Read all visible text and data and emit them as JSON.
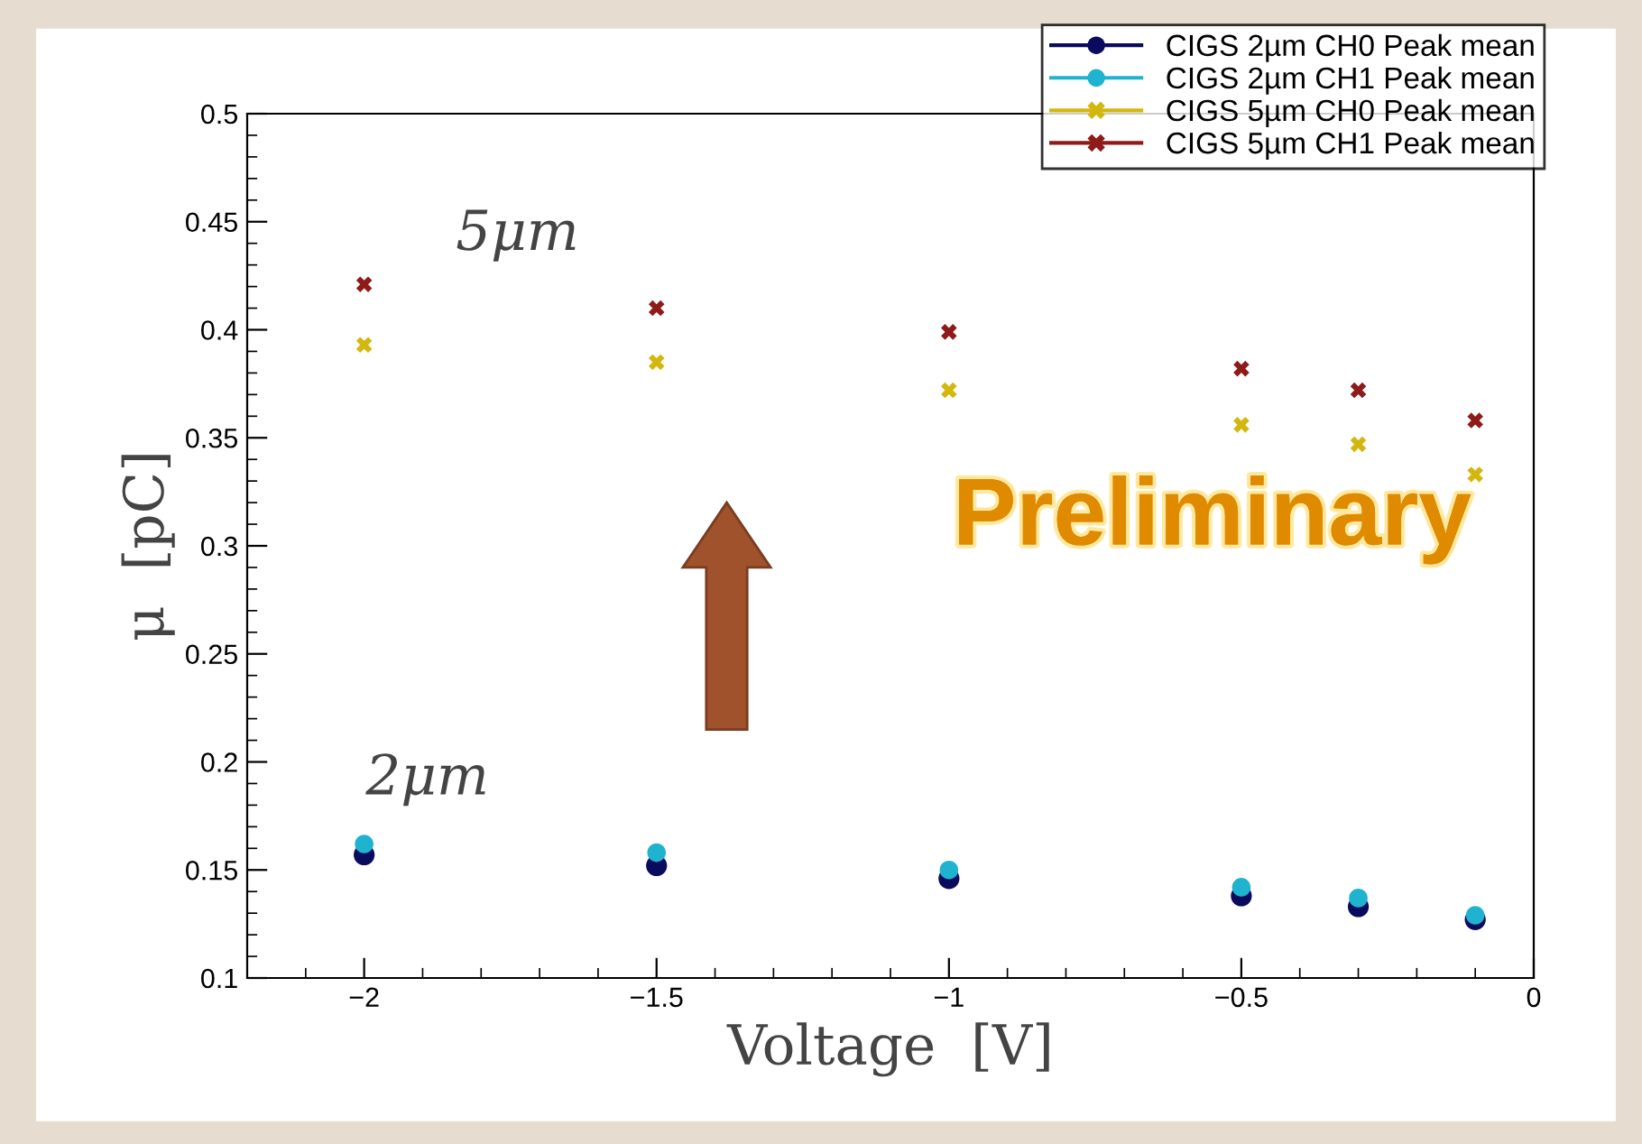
{
  "chart_data": {
    "type": "scatter",
    "xlabel": "Voltage  [V]",
    "ylabel": "μ  [pC]",
    "x": [
      -2,
      -1.5,
      -1,
      -0.5,
      -0.3,
      -0.1
    ],
    "series": [
      {
        "name": "CIGS 2µm CH0 Peak mean",
        "color": "#0b0b5e",
        "marker": "circle",
        "values": [
          0.157,
          0.152,
          0.146,
          0.138,
          0.133,
          0.127
        ]
      },
      {
        "name": "CIGS 2µm CH1 Peak mean",
        "color": "#1fb3cf",
        "marker": "circle",
        "values": [
          0.162,
          0.158,
          0.15,
          0.142,
          0.137,
          0.129
        ]
      },
      {
        "name": "CIGS 5µm CH0 Peak mean",
        "color": "#d4b70e",
        "marker": "cross",
        "values": [
          0.393,
          0.385,
          0.372,
          0.356,
          0.347,
          0.333
        ]
      },
      {
        "name": "CIGS 5µm CH1 Peak mean",
        "color": "#8e1a1a",
        "marker": "cross",
        "values": [
          0.421,
          0.41,
          0.399,
          0.382,
          0.372,
          0.358
        ]
      }
    ],
    "xlim": [
      -2.2,
      0
    ],
    "xticks": [
      {
        "value": -2,
        "label": "−2"
      },
      {
        "value": -1.5,
        "label": "−1.5"
      },
      {
        "value": -1,
        "label": "−1"
      },
      {
        "value": -0.5,
        "label": "−0.5"
      },
      0
    ],
    "ylim": [
      0.1,
      0.5
    ],
    "yticks": [
      0.1,
      0.15,
      0.2,
      0.25,
      0.3,
      0.35,
      0.4,
      0.45,
      0.5
    ],
    "grid": false,
    "legend": "top right",
    "annotations": [
      "5μm",
      "2μm",
      "Preliminary"
    ]
  }
}
